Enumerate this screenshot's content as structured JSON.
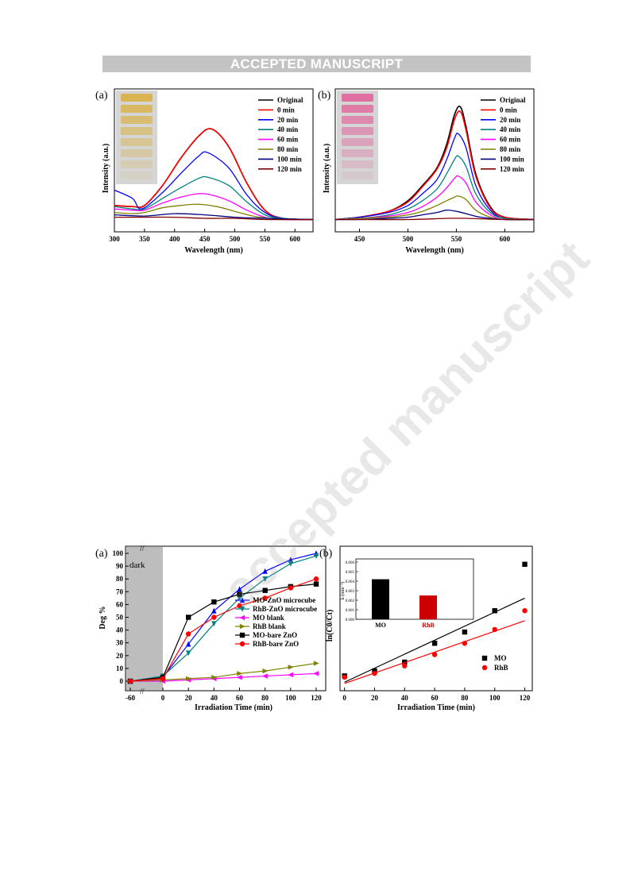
{
  "header": {
    "text": "ACCEPTED MANUSCRIPT"
  },
  "watermark": {
    "text": "accepted manuscript",
    "color": "#d0d0d0"
  },
  "chart_data": [
    {
      "id": "uv-mo",
      "type": "line",
      "panel_label": "(a)",
      "xlabel": "Wavelength (nm)",
      "ylabel": "Intensity (a.u.)",
      "xlim": [
        300,
        630
      ],
      "ylim": [
        0,
        1
      ],
      "xticks": [
        300,
        350,
        400,
        450,
        500,
        550,
        600
      ],
      "inset_photo": {
        "description_color": "#d9b24a"
      },
      "series": [
        {
          "name": "Original",
          "color": "#000000",
          "x": [
            300,
            330,
            350,
            380,
            410,
            440,
            462,
            490,
            520,
            550,
            580,
            630
          ],
          "y": [
            0.13,
            0.12,
            0.13,
            0.3,
            0.53,
            0.72,
            0.78,
            0.63,
            0.32,
            0.09,
            0.02,
            0.01
          ]
        },
        {
          "name": "0 min",
          "color": "#ff0000",
          "x": [
            300,
            330,
            350,
            380,
            410,
            440,
            462,
            490,
            520,
            550,
            580,
            630
          ],
          "y": [
            0.13,
            0.12,
            0.13,
            0.3,
            0.53,
            0.72,
            0.78,
            0.63,
            0.32,
            0.09,
            0.02,
            0.01
          ]
        },
        {
          "name": "20 min",
          "color": "#0000ff",
          "x": [
            300,
            330,
            345,
            380,
            410,
            440,
            455,
            490,
            520,
            550,
            580,
            630
          ],
          "y": [
            0.26,
            0.19,
            0.1,
            0.24,
            0.4,
            0.55,
            0.58,
            0.45,
            0.22,
            0.07,
            0.02,
            0.01
          ]
        },
        {
          "name": "40 min",
          "color": "#008080",
          "x": [
            300,
            330,
            350,
            380,
            410,
            440,
            455,
            490,
            520,
            550,
            580,
            630
          ],
          "y": [
            0.12,
            0.1,
            0.1,
            0.19,
            0.28,
            0.36,
            0.37,
            0.3,
            0.16,
            0.05,
            0.02,
            0.01
          ]
        },
        {
          "name": "60 min",
          "color": "#ff00ff",
          "x": [
            300,
            330,
            350,
            380,
            410,
            440,
            460,
            490,
            520,
            550,
            580,
            630
          ],
          "y": [
            0.1,
            0.09,
            0.09,
            0.15,
            0.2,
            0.23,
            0.22,
            0.17,
            0.09,
            0.03,
            0.01,
            0.01
          ]
        },
        {
          "name": "80 min",
          "color": "#808000",
          "x": [
            300,
            330,
            350,
            380,
            410,
            440,
            470,
            500,
            530,
            560,
            630
          ],
          "y": [
            0.07,
            0.06,
            0.07,
            0.11,
            0.13,
            0.14,
            0.12,
            0.08,
            0.04,
            0.02,
            0.01
          ]
        },
        {
          "name": "100 min",
          "color": "#000080",
          "x": [
            300,
            350,
            400,
            450,
            500,
            550,
            630
          ],
          "y": [
            0.05,
            0.04,
            0.06,
            0.05,
            0.03,
            0.02,
            0.01
          ]
        },
        {
          "name": "120 min",
          "color": "#800000",
          "x": [
            300,
            350,
            400,
            450,
            500,
            550,
            630
          ],
          "y": [
            0.03,
            0.03,
            0.03,
            0.02,
            0.02,
            0.01,
            0.01
          ]
        }
      ]
    },
    {
      "id": "uv-rhb",
      "type": "line",
      "panel_label": "(b)",
      "xlabel": "Wavelength (nm)",
      "ylabel": "Intensity (a.u.)",
      "xlim": [
        425,
        630
      ],
      "ylim": [
        0,
        1
      ],
      "xticks": [
        450,
        500,
        550,
        600
      ],
      "inset_photo": {
        "description_color": "#e06a9e"
      },
      "series": [
        {
          "name": "Original",
          "color": "#000000",
          "x": [
            425,
            450,
            480,
            500,
            515,
            530,
            540,
            548,
            554,
            560,
            570,
            585,
            600,
            630
          ],
          "y": [
            0.01,
            0.03,
            0.08,
            0.17,
            0.3,
            0.45,
            0.65,
            0.9,
            0.97,
            0.8,
            0.4,
            0.12,
            0.03,
            0.01
          ]
        },
        {
          "name": "0 min",
          "color": "#ff0000",
          "x": [
            425,
            450,
            480,
            500,
            515,
            530,
            540,
            548,
            554,
            560,
            570,
            585,
            600,
            630
          ],
          "y": [
            0.01,
            0.03,
            0.08,
            0.16,
            0.29,
            0.44,
            0.62,
            0.86,
            0.93,
            0.77,
            0.38,
            0.11,
            0.03,
            0.01
          ]
        },
        {
          "name": "20 min",
          "color": "#0000ff",
          "x": [
            425,
            450,
            480,
            500,
            515,
            530,
            540,
            548,
            552,
            560,
            570,
            585,
            600,
            630
          ],
          "y": [
            0.01,
            0.03,
            0.07,
            0.13,
            0.23,
            0.35,
            0.52,
            0.7,
            0.74,
            0.62,
            0.3,
            0.09,
            0.02,
            0.01
          ]
        },
        {
          "name": "40 min",
          "color": "#008080",
          "x": [
            425,
            450,
            480,
            500,
            515,
            530,
            540,
            548,
            552,
            560,
            570,
            585,
            600,
            630
          ],
          "y": [
            0.01,
            0.02,
            0.05,
            0.1,
            0.17,
            0.27,
            0.4,
            0.52,
            0.55,
            0.46,
            0.23,
            0.07,
            0.02,
            0.01
          ]
        },
        {
          "name": "60 min",
          "color": "#ff00ff",
          "x": [
            425,
            450,
            480,
            500,
            515,
            530,
            540,
            548,
            552,
            560,
            570,
            585,
            600,
            630
          ],
          "y": [
            0.01,
            0.02,
            0.04,
            0.07,
            0.12,
            0.2,
            0.28,
            0.36,
            0.38,
            0.32,
            0.16,
            0.05,
            0.01,
            0.01
          ]
        },
        {
          "name": "80 min",
          "color": "#808000",
          "x": [
            425,
            450,
            480,
            500,
            515,
            530,
            540,
            548,
            552,
            560,
            570,
            585,
            600,
            630
          ],
          "y": [
            0.01,
            0.02,
            0.03,
            0.05,
            0.08,
            0.13,
            0.17,
            0.2,
            0.21,
            0.18,
            0.09,
            0.03,
            0.01,
            0.01
          ]
        },
        {
          "name": "100 min",
          "color": "#000080",
          "x": [
            425,
            450,
            480,
            500,
            515,
            530,
            540,
            550,
            560,
            575,
            600,
            630
          ],
          "y": [
            0.01,
            0.01,
            0.02,
            0.03,
            0.05,
            0.07,
            0.09,
            0.08,
            0.06,
            0.03,
            0.01,
            0.01
          ]
        },
        {
          "name": "120 min",
          "color": "#800000",
          "x": [
            425,
            450,
            500,
            540,
            560,
            600,
            630
          ],
          "y": [
            0.01,
            0.01,
            0.01,
            0.02,
            0.02,
            0.01,
            0.01
          ]
        }
      ]
    },
    {
      "id": "deg",
      "type": "line",
      "panel_label": "(a)",
      "xlabel": "Irradiation Time (min)",
      "ylabel": "Deg %",
      "dark_label": "dark",
      "xlim": [
        -60,
        120
      ],
      "ylim": [
        0,
        100
      ],
      "xticks": [
        -60,
        0,
        20,
        40,
        60,
        80,
        100,
        120
      ],
      "yticks": [
        0,
        10,
        20,
        30,
        40,
        50,
        60,
        70,
        80,
        90,
        100
      ],
      "series": [
        {
          "name": "MO-ZnO microcube",
          "color": "#0000ff",
          "marker": "triangle-up",
          "x": [
            -60,
            0,
            20,
            40,
            60,
            80,
            100,
            120
          ],
          "y": [
            0,
            3,
            29,
            55,
            72,
            86,
            95,
            100
          ]
        },
        {
          "name": "RhB-ZnO microcube",
          "color": "#008080",
          "marker": "triangle-down",
          "x": [
            -60,
            0,
            20,
            40,
            60,
            80,
            100,
            120
          ],
          "y": [
            0,
            4,
            22,
            45,
            65,
            80,
            92,
            98
          ]
        },
        {
          "name": "MO blank",
          "color": "#ff00ff",
          "marker": "triangle-left",
          "x": [
            -60,
            0,
            20,
            40,
            60,
            80,
            100,
            120
          ],
          "y": [
            0,
            0,
            1,
            2,
            3,
            4,
            5,
            6
          ]
        },
        {
          "name": "RhB blank",
          "color": "#808000",
          "marker": "triangle-right",
          "x": [
            -60,
            0,
            20,
            40,
            60,
            80,
            100,
            120
          ],
          "y": [
            0,
            1,
            2,
            3,
            6,
            8,
            11,
            14
          ]
        },
        {
          "name": "MO-bare ZnO",
          "color": "#000000",
          "marker": "square",
          "x": [
            -60,
            0,
            20,
            40,
            60,
            80,
            100,
            120
          ],
          "y": [
            0,
            3,
            50,
            62,
            68,
            71,
            74,
            76
          ]
        },
        {
          "name": "RhB-bare ZnO",
          "color": "#ff0000",
          "marker": "circle",
          "x": [
            -60,
            0,
            20,
            40,
            60,
            80,
            100,
            120
          ],
          "y": [
            0,
            2,
            37,
            50,
            59,
            65,
            73,
            80
          ]
        }
      ]
    },
    {
      "id": "kinetics",
      "type": "scatter",
      "panel_label": "(b)",
      "xlabel": "Irradiation Time (min)",
      "ylabel": "ln(C0/Ct)",
      "xlim": [
        -3,
        125
      ],
      "ylim": [
        0,
        1
      ],
      "xticks": [
        0,
        20,
        40,
        60,
        80,
        100,
        120
      ],
      "series": [
        {
          "name": "MO",
          "color": "#000000",
          "marker": "square",
          "x": [
            0,
            20,
            40,
            60,
            80,
            100,
            120
          ],
          "y": [
            0.08,
            0.12,
            0.19,
            0.34,
            0.43,
            0.6,
            0.97
          ],
          "fit": [
            0.03,
            0.7
          ]
        },
        {
          "name": "RhB",
          "color": "#ff0000",
          "marker": "circle",
          "x": [
            0,
            20,
            40,
            60,
            80,
            100,
            120
          ],
          "y": [
            0.07,
            0.1,
            0.16,
            0.25,
            0.34,
            0.45,
            0.6
          ],
          "fit": [
            0.02,
            0.52
          ]
        }
      ],
      "inset": {
        "type": "bar",
        "ylabel": "k (min⁻¹)",
        "yticks": [
          "0.000",
          "0.001",
          "0.002",
          "0.003",
          "0.004",
          "0.005",
          "0.006"
        ],
        "ylim": [
          0,
          0.006
        ],
        "categories": [
          "MO",
          "RhB"
        ],
        "values": [
          0.0042,
          0.0025
        ],
        "colors": [
          "#000000",
          "#cc0000"
        ]
      }
    }
  ]
}
